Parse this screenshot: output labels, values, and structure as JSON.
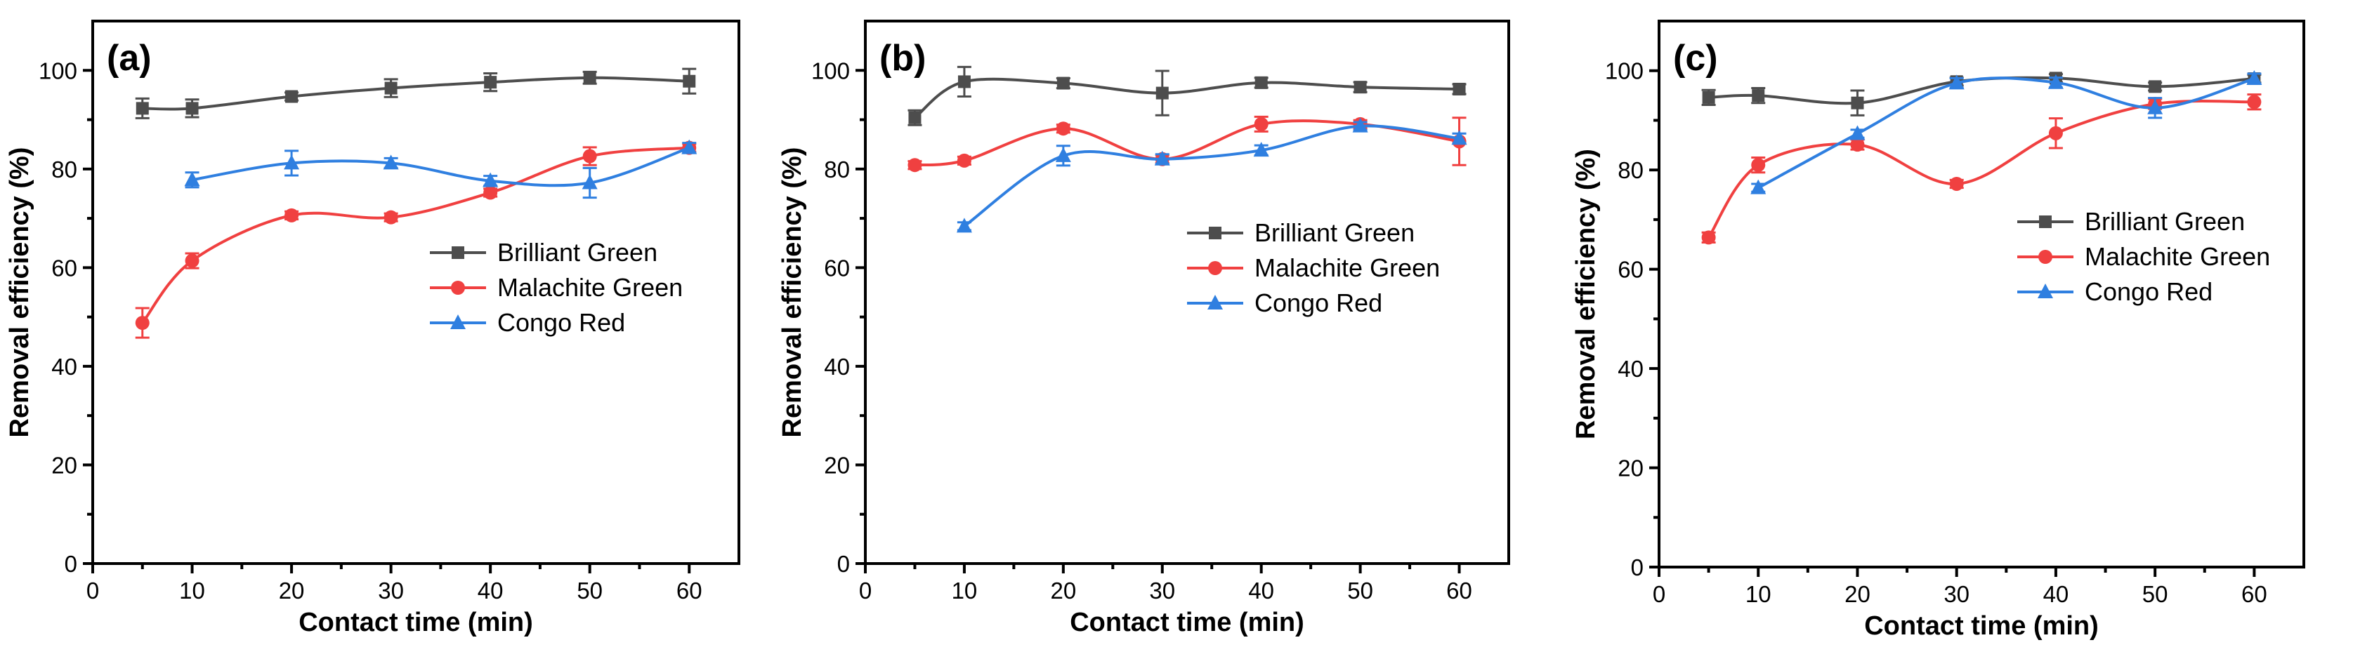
{
  "chart_data": [
    {
      "type": "line",
      "panel_label": "(a)",
      "xlabel": "Contact time (min)",
      "ylabel": "Removal efficiency (%)",
      "xlim": [
        0,
        65
      ],
      "ylim": [
        0,
        110
      ],
      "xticks": [
        0,
        10,
        20,
        30,
        40,
        50,
        60
      ],
      "yticks": [
        0,
        20,
        40,
        60,
        80,
        100
      ],
      "legend_position": "center-right",
      "series": [
        {
          "name": "Brilliant Green",
          "color": "#4d4d4d",
          "marker": "square",
          "x": [
            5,
            10,
            20,
            30,
            40,
            50,
            60
          ],
          "y": [
            92.3,
            92.3,
            94.7,
            96.4,
            97.6,
            98.5,
            97.8
          ],
          "err": [
            2.0,
            1.8,
            0.8,
            1.8,
            1.8,
            1.2,
            2.5
          ]
        },
        {
          "name": "Malachite Green",
          "color": "#f04040",
          "marker": "circle",
          "x": [
            5,
            10,
            20,
            30,
            40,
            50,
            60
          ],
          "y": [
            48.8,
            61.4,
            70.6,
            70.2,
            75.2,
            82.6,
            84.3
          ],
          "err": [
            3.0,
            1.5,
            0.8,
            0.8,
            0.8,
            1.8,
            0.8
          ]
        },
        {
          "name": "Congo Red",
          "color": "#2f7fe0",
          "marker": "triangle",
          "x": [
            10,
            20,
            30,
            40,
            50,
            60
          ],
          "y": [
            77.8,
            81.2,
            81.2,
            77.6,
            77.2,
            84.3
          ],
          "err": [
            1.5,
            2.5,
            1.0,
            1.0,
            3.0,
            1.0
          ]
        }
      ]
    },
    {
      "type": "line",
      "panel_label": "(b)",
      "xlabel": "Contact time (min)",
      "ylabel": "Removal efficiency (%)",
      "xlim": [
        0,
        65
      ],
      "ylim": [
        0,
        110
      ],
      "xticks": [
        0,
        10,
        20,
        30,
        40,
        50,
        60
      ],
      "yticks": [
        0,
        20,
        40,
        60,
        80,
        100
      ],
      "legend_position": "center-right",
      "series": [
        {
          "name": "Brilliant Green",
          "color": "#4d4d4d",
          "marker": "square",
          "x": [
            5,
            10,
            20,
            30,
            40,
            50,
            60
          ],
          "y": [
            90.4,
            97.7,
            97.4,
            95.4,
            97.5,
            96.6,
            96.2
          ],
          "err": [
            1.5,
            3.0,
            1.0,
            4.5,
            1.0,
            1.0,
            1.0
          ]
        },
        {
          "name": "Malachite Green",
          "color": "#f04040",
          "marker": "circle",
          "x": [
            5,
            10,
            20,
            30,
            40,
            50,
            60
          ],
          "y": [
            80.8,
            81.7,
            88.2,
            82.0,
            89.1,
            89.1,
            85.6
          ],
          "err": [
            0.8,
            0.8,
            0.8,
            0.8,
            1.5,
            0.8,
            4.8
          ]
        },
        {
          "name": "Congo Red",
          "color": "#2f7fe0",
          "marker": "triangle",
          "x": [
            10,
            20,
            30,
            40,
            50,
            60
          ],
          "y": [
            68.4,
            82.7,
            82.0,
            83.8,
            88.7,
            86.2
          ],
          "err": [
            0.8,
            2.0,
            1.0,
            1.0,
            0.8,
            1.0
          ]
        }
      ]
    },
    {
      "type": "line",
      "panel_label": "(c)",
      "xlabel": "Contact time (min)",
      "ylabel": "Removal efficiency (%)",
      "xlim": [
        0,
        65
      ],
      "ylim": [
        0,
        110
      ],
      "xticks": [
        0,
        10,
        20,
        30,
        40,
        50,
        60
      ],
      "yticks": [
        0,
        20,
        40,
        60,
        80,
        100
      ],
      "legend_position": "top-right",
      "series": [
        {
          "name": "Brilliant Green",
          "color": "#4d4d4d",
          "marker": "square",
          "x": [
            5,
            10,
            20,
            30,
            40,
            50,
            60
          ],
          "y": [
            94.6,
            95.0,
            93.5,
            97.8,
            98.5,
            96.8,
            98.4
          ],
          "err": [
            1.5,
            1.5,
            2.5,
            0.8,
            0.8,
            0.8,
            0.8
          ]
        },
        {
          "name": "Malachite Green",
          "color": "#f04040",
          "marker": "circle",
          "x": [
            5,
            10,
            20,
            30,
            40,
            50,
            60
          ],
          "y": [
            66.4,
            81.0,
            85.1,
            77.2,
            87.4,
            93.3,
            93.7
          ],
          "err": [
            1.0,
            1.5,
            1.0,
            0.8,
            3.0,
            1.0,
            1.5
          ]
        },
        {
          "name": "Congo Red",
          "color": "#2f7fe0",
          "marker": "triangle",
          "x": [
            10,
            20,
            30,
            40,
            50,
            60
          ],
          "y": [
            76.4,
            87.3,
            97.5,
            97.6,
            92.5,
            98.4
          ],
          "err": [
            0.8,
            0.8,
            1.0,
            1.0,
            2.0,
            1.0
          ]
        }
      ]
    }
  ]
}
